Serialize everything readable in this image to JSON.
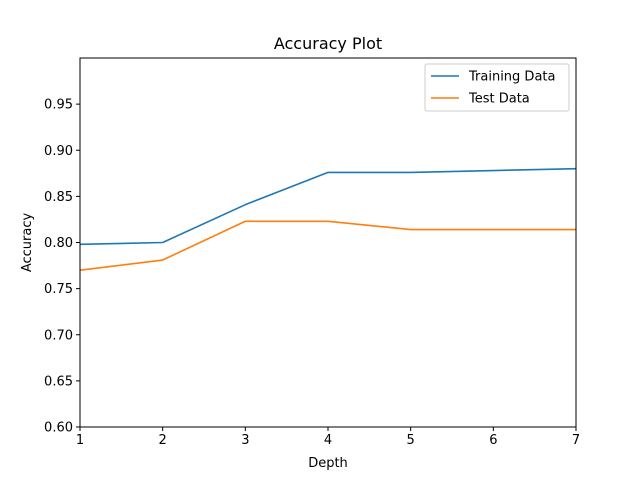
{
  "chart_data": {
    "type": "line",
    "title": "Accuracy Plot",
    "xlabel": "Depth",
    "ylabel": "Accuracy",
    "x": [
      1,
      2,
      3,
      4,
      5,
      6,
      7
    ],
    "xlim": [
      1,
      7
    ],
    "ylim": [
      0.6,
      1.0
    ],
    "xticks": [
      "1",
      "2",
      "3",
      "4",
      "5",
      "6",
      "7"
    ],
    "yticks": [
      "0.60",
      "0.65",
      "0.70",
      "0.75",
      "0.80",
      "0.85",
      "0.90",
      "0.95"
    ],
    "grid": false,
    "legend_position": "upper right",
    "series": [
      {
        "name": "Training Data",
        "color": "#1f77b4",
        "values": [
          0.798,
          0.8,
          0.841,
          0.876,
          0.876,
          0.878,
          0.88
        ]
      },
      {
        "name": "Test Data",
        "color": "#ff7f0e",
        "values": [
          0.77,
          0.781,
          0.823,
          0.823,
          0.814,
          0.814,
          0.814
        ]
      }
    ]
  }
}
